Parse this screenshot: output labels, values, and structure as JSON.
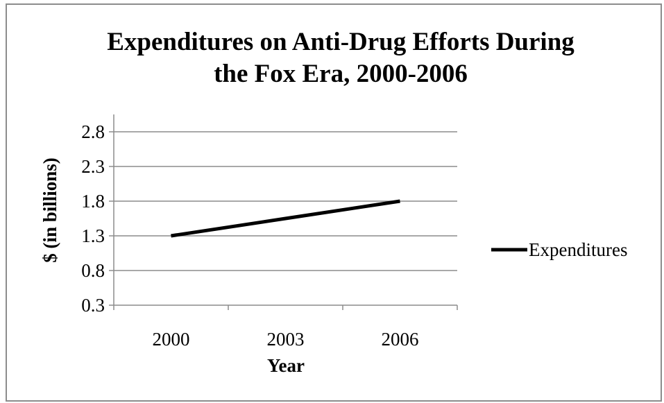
{
  "chart_data": {
    "type": "line",
    "title": "Expenditures on Anti-Drug Efforts During the Fox Era, 2000-2006",
    "title_lines": [
      "Expenditures on Anti-Drug Efforts During",
      "the Fox Era, 2000-2006"
    ],
    "xlabel": "Year",
    "ylabel": "$ (in billions)",
    "categories": [
      "2000",
      "2003",
      "2006"
    ],
    "series": [
      {
        "name": "Expenditures",
        "values": [
          1.3,
          1.55,
          1.8
        ],
        "color": "#000000"
      }
    ],
    "y_ticks": [
      "0.3",
      "0.8",
      "1.3",
      "1.8",
      "2.3",
      "2.8"
    ],
    "ylim": [
      0.3,
      2.8
    ],
    "grid": true,
    "legend_position": "right"
  }
}
